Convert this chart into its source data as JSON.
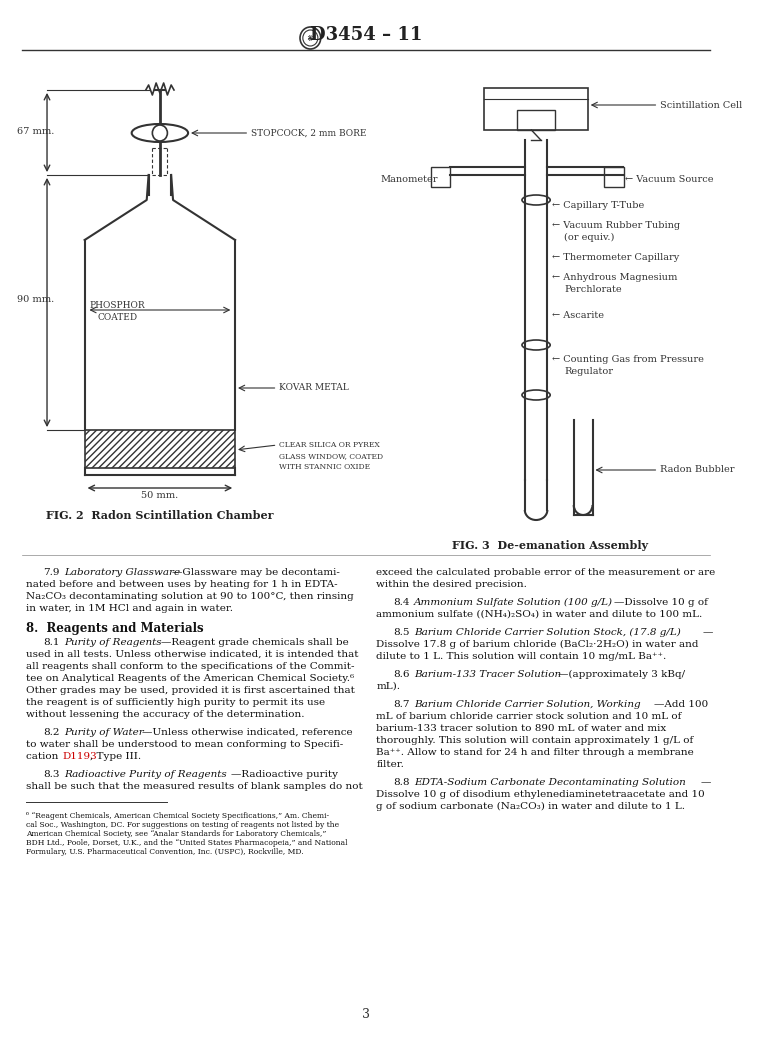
{
  "title": "D3454 – 11",
  "page_number": "3",
  "background_color": "#ffffff",
  "text_color": "#000000",
  "fig2_caption": "FIG. 2  Radon Scintillation Chamber",
  "fig3_caption": "FIG. 3  De-emanation Assembly",
  "section_heading": "8.  Reagents and Materials",
  "left_column_text": [
    {
      "indent": 0.35,
      "text": "7.9 — Laboratory Glassware—Glassware may be decontami-\nnated before and between uses by heating for 1 h in EDTA-\nNa₂CO₃ decontaminating solution at 90 to 100°C, then rinsing\nin water, in 1M HCl and again in water."
    },
    {
      "indent": 0.35,
      "text": "8.1  Purity of Reagents—Reagent grade chemicals shall be\nused in all tests. Unless otherwise indicated, it is intended that\nall reagents shall conform to the specifications of the Commit-\ntee on Analytical Reagents of the American Chemical Society.⁶\nOther grades may be used, provided it is first ascertained that\nthe reagent is of sufficiently high purity to permit its use\nwithout lessening the accuracy of the determination."
    },
    {
      "indent": 0.35,
      "text": "8.2  Purity of Water—Unless otherwise indicated, reference\nto water shall be understood to mean conforming to Specifi-\ncation D1193, Type III."
    },
    {
      "indent": 0.35,
      "text": "8.3  Radioactive Purity of Reagents—Radioactive purity\nshall be such that the measured results of blank samples do not"
    }
  ],
  "right_column_text": [
    {
      "text": "exceed the calculated probable error of the measurement or are\nwithin the desired precision."
    },
    {
      "text": "8.4  Ammonium Sulfate Solution (100 g/L)—Dissolve 10 g of\nammonium sulfate ((NH₄)₂SO₄) in water and dilute to 100 mL."
    },
    {
      "text": "8.5  Barium Chloride Carrier Solution Stock, (17.8 g/L)—\nDissolve 17.8 g of barium chloride (BaCl₂·2H₂O) in water and\ndilute to 1 L. This solution will contain 10 mg/mL Ba⁺⁺."
    },
    {
      "text": "8.6  Barium-133 Tracer Solution—(approximately 3 kBq/\nmL)."
    },
    {
      "text": "8.7  Barium Chloride Carrier Solution, Working—Add 100\nmL of barium chloride carrier stock solution and 10 mL of\nbarium-133 tracer solution to 890 mL of water and mix\nthoroughly. This solution will contain approximately 1 g/L of\nBa⁺⁺. Allow to stand for 24 h and filter through a membrane\nfilter."
    },
    {
      "text": "8.8  EDTA-Sodium Carbonate Decontaminating Solution—\nDissolve 10 g of disodium ethylenediaminetetraacetate and 10\ng of sodium carbonate (Na₂CO₃) in water and dilute to 1 L."
    }
  ],
  "footnote": "⁶ “Reagent Chemicals, American Chemical Society Specifications,” Am. Chemi-\ncal Soc., Washington, DC. For suggestions on testing of reagents not listed by the\nAmerican Chemical Society, see “Analar Standards for Laboratory Chemicals,”\nBDH Ltd., Poole, Dorset, U.K., and the “United States Pharmacopeia,” and National\nFormulary, U.S. Pharmaceutical Convention, Inc. (USPC), Rockville, MD."
}
